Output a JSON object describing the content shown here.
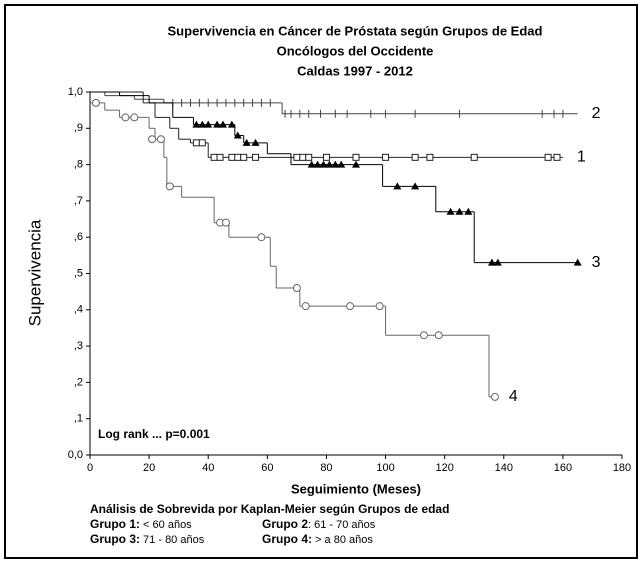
{
  "chart_data": {
    "type": "kaplan-meier",
    "title": [
      "Supervivencia en Cáncer de Próstata según  Grupos de Edad",
      "Oncólogos del Occidente",
      "Caldas  1997 - 2012"
    ],
    "x_label": "Seguimiento (Meses)",
    "y_label": "Supervivencia",
    "annotation": "Log rank ... p=0.001",
    "xlim": [
      0,
      180
    ],
    "xticks": [
      0,
      20,
      40,
      60,
      80,
      100,
      120,
      140,
      160,
      180
    ],
    "ylim": [
      0,
      1
    ],
    "yticks": [
      {
        "value": 0,
        "label": "0,0"
      },
      {
        "value": 0.1,
        "label": ",1"
      },
      {
        "value": 0.2,
        "label": ",2"
      },
      {
        "value": 0.3,
        "label": ",3"
      },
      {
        "value": 0.4,
        "label": ",4"
      },
      {
        "value": 0.5,
        "label": ",5"
      },
      {
        "value": 0.6,
        "label": ",6"
      },
      {
        "value": 0.7,
        "label": ",7"
      },
      {
        "value": 0.8,
        "label": ",8"
      },
      {
        "value": 0.9,
        "label": ",9"
      },
      {
        "value": 1,
        "label": "1,0"
      }
    ],
    "series": [
      {
        "name": "2",
        "color": "#444444",
        "marker": "plus",
        "x": [
          0,
          5,
          15,
          25,
          65,
          165
        ],
        "values": [
          1.0,
          0.99,
          0.98,
          0.97,
          0.94,
          0.94
        ],
        "censored_x": [
          28,
          31,
          34,
          37,
          40,
          43,
          46,
          49,
          52,
          55,
          58,
          61,
          66,
          68,
          71,
          74,
          78,
          83,
          87,
          95,
          100,
          110,
          125,
          153,
          157,
          160
        ],
        "censored_values": [
          0.97,
          0.97,
          0.97,
          0.97,
          0.97,
          0.97,
          0.97,
          0.97,
          0.97,
          0.97,
          0.97,
          0.97,
          0.94,
          0.94,
          0.94,
          0.94,
          0.94,
          0.94,
          0.94,
          0.94,
          0.94,
          0.94,
          0.94,
          0.94,
          0.94,
          0.94
        ]
      },
      {
        "name": "1",
        "color": "#222222",
        "marker": "square",
        "x": [
          0,
          18,
          22,
          27,
          30,
          34,
          40,
          160
        ],
        "values": [
          1.0,
          0.97,
          0.93,
          0.9,
          0.87,
          0.86,
          0.82,
          0.82
        ],
        "censored_x": [
          36,
          38,
          42,
          44,
          48,
          50,
          52,
          56,
          70,
          72,
          74,
          80,
          90,
          100,
          110,
          115,
          130,
          155,
          158
        ],
        "censored_values": [
          0.86,
          0.86,
          0.82,
          0.82,
          0.82,
          0.82,
          0.82,
          0.82,
          0.82,
          0.82,
          0.82,
          0.82,
          0.82,
          0.82,
          0.82,
          0.82,
          0.82,
          0.82,
          0.82
        ]
      },
      {
        "name": "3",
        "color": "#000000",
        "marker": "triangle",
        "x": [
          0,
          10,
          20,
          28,
          35,
          49,
          52,
          60,
          68,
          99,
          117,
          130,
          165
        ],
        "values": [
          1.0,
          0.99,
          0.97,
          0.93,
          0.91,
          0.88,
          0.86,
          0.83,
          0.8,
          0.74,
          0.67,
          0.53,
          0.53
        ],
        "censored_x": [
          36,
          38,
          40,
          43,
          45,
          48,
          50,
          53,
          56,
          75,
          77,
          79,
          81,
          83,
          85,
          90,
          104,
          110,
          122,
          125,
          128,
          136,
          138,
          165
        ],
        "censored_values": [
          0.91,
          0.91,
          0.91,
          0.91,
          0.91,
          0.91,
          0.88,
          0.86,
          0.86,
          0.8,
          0.8,
          0.8,
          0.8,
          0.8,
          0.8,
          0.8,
          0.74,
          0.74,
          0.67,
          0.67,
          0.67,
          0.53,
          0.53,
          0.53
        ]
      },
      {
        "name": "4",
        "color": "#666666",
        "marker": "circle",
        "x": [
          0,
          5,
          10,
          20,
          22,
          25,
          26,
          31,
          42,
          47,
          61,
          63,
          71,
          100,
          135,
          137
        ],
        "values": [
          0.97,
          0.95,
          0.93,
          0.9,
          0.87,
          0.82,
          0.74,
          0.71,
          0.64,
          0.6,
          0.52,
          0.46,
          0.41,
          0.33,
          0.16,
          0.16
        ],
        "censored_x": [
          2,
          12,
          15,
          21,
          24,
          27,
          44,
          46,
          58,
          70,
          73,
          88,
          98,
          113,
          118,
          137
        ],
        "censored_values": [
          0.97,
          0.93,
          0.93,
          0.87,
          0.87,
          0.74,
          0.64,
          0.64,
          0.6,
          0.46,
          0.41,
          0.41,
          0.41,
          0.33,
          0.33,
          0.16
        ]
      }
    ],
    "footer": {
      "heading": "Análisis de Sobrevida por Kaplan-Meier según Grupos de edad",
      "groups": [
        {
          "label": "Grupo 1:",
          "text": " < 60 años"
        },
        {
          "label": "Grupo 2",
          "text": ": 61 - 70 años"
        },
        {
          "label": "Grupo 3:",
          "text": " 71 - 80 años"
        },
        {
          "label": "Grupo 4:",
          "text": " > a 80 años"
        }
      ]
    }
  }
}
